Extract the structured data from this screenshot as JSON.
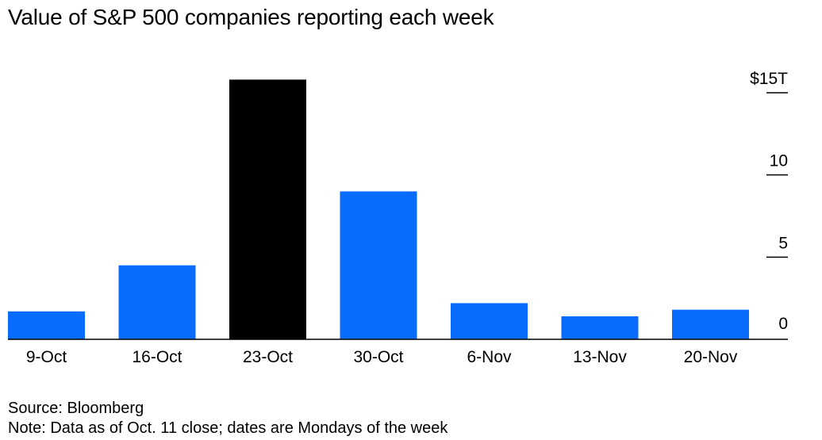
{
  "title": "Value of S&P 500 companies reporting each week",
  "source": "Source: Bloomberg",
  "note": "Note: Data as of Oct. 11 close; dates are Mondays of the week",
  "colors": {
    "bar": "#0a6cff",
    "highlight": "#000000",
    "axis": "#000000"
  },
  "chart_data": {
    "type": "bar",
    "title": "Value of S&P 500 companies reporting each week",
    "xlabel": "",
    "ylabel": "",
    "categories": [
      "9-Oct",
      "16-Oct",
      "23-Oct",
      "30-Oct",
      "6-Nov",
      "13-Nov",
      "20-Nov"
    ],
    "values": [
      1.7,
      4.5,
      15.8,
      9.0,
      2.2,
      1.4,
      1.8
    ],
    "highlight_index": 2,
    "ylim": [
      0,
      15
    ],
    "yticks": [
      0,
      5,
      10,
      15
    ],
    "ytick_labels": [
      "0",
      "5",
      "10",
      "$15T"
    ],
    "y_axis_position": "right",
    "grid": false,
    "legend": "none"
  }
}
